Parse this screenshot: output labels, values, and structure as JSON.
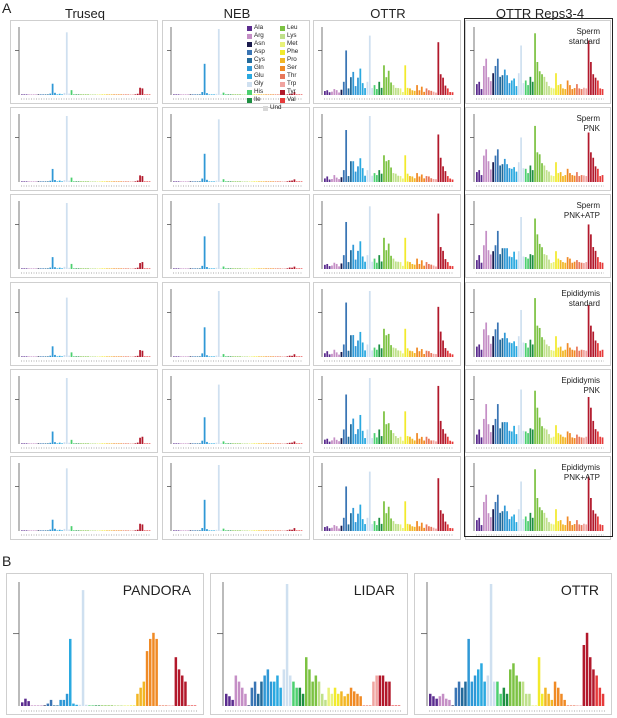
{
  "panel_labels": {
    "a": "A",
    "b": "B"
  },
  "columns": [
    "Truseq",
    "NEB",
    "OTTR",
    "OTTR Reps3-4"
  ],
  "rows": [
    [
      "Sperm",
      "standard"
    ],
    [
      "Sperm",
      "PNK"
    ],
    [
      "Sperm",
      "PNK+ATP"
    ],
    [
      "Epididymis",
      "standard"
    ],
    [
      "Epididymis",
      "PNK"
    ],
    [
      "Epididymis",
      "PNK+ATP"
    ]
  ],
  "legend": {
    "left": [
      {
        "name": "Ala",
        "color": "#5b2c8f"
      },
      {
        "name": "Arg",
        "color": "#c58fc6"
      },
      {
        "name": "Asn",
        "color": "#1b1c4e"
      },
      {
        "name": "Asp",
        "color": "#3a75b4"
      },
      {
        "name": "Cys",
        "color": "#236a9a"
      },
      {
        "name": "Gln",
        "color": "#2f98d6"
      },
      {
        "name": "Glu",
        "color": "#2aa9e0"
      },
      {
        "name": "Gly",
        "color": "#cfe0f0"
      },
      {
        "name": "His",
        "color": "#4cd06f"
      },
      {
        "name": "Ile",
        "color": "#1e8f42"
      }
    ],
    "right": [
      {
        "name": "Leu",
        "color": "#7cc242"
      },
      {
        "name": "Lys",
        "color": "#bfe08a"
      },
      {
        "name": "Met",
        "color": "#e8f27a"
      },
      {
        "name": "Phe",
        "color": "#f2ea2c"
      },
      {
        "name": "Pro",
        "color": "#f2b624"
      },
      {
        "name": "Ser",
        "color": "#f08a25"
      },
      {
        "name": "Thr",
        "color": "#e8775a"
      },
      {
        "name": "Trp",
        "color": "#f0a4a0"
      },
      {
        "name": "Tyr",
        "color": "#b2182b"
      },
      {
        "name": "Val",
        "color": "#e63a3a"
      }
    ],
    "und": {
      "name": "Und",
      "color": "#d8d8d8"
    }
  },
  "chart_data": [
    {
      "type": "bar",
      "panel": "A",
      "description_axis": "x = tRNA isodecoders grouped by amino acid; y = relative abundance",
      "grid": false,
      "series": [
        {
          "column": "Truseq",
          "rows": "all",
          "values_by_group": {
            "Gln": 0.25,
            "Gly": 1.0,
            "His": 0.08,
            "Tyr": 0.1
          }
        },
        {
          "column": "NEB",
          "rows": "all",
          "values_by_group": {
            "Gln": 0.5,
            "Gly": 1.0,
            "His": 0.04,
            "Tyr": 0.03
          }
        },
        {
          "column": "OTTR",
          "rows": "all",
          "values_by_group": {
            "Asp": 0.62,
            "Gly": 1.0,
            "Leu": 0.45,
            "Phe": 0.4,
            "Tyr": 0.7
          }
        },
        {
          "column": "OTTR Reps3-4",
          "rows": "all",
          "values_by_group": {
            "Arg": 0.45,
            "Gly": 0.75,
            "Leu": 0.8,
            "Tyr": 0.85
          }
        }
      ]
    },
    {
      "type": "bar",
      "panel": "B",
      "titles": [
        "PANDORA",
        "LIDAR",
        "OTTR"
      ],
      "grid": false
    }
  ]
}
